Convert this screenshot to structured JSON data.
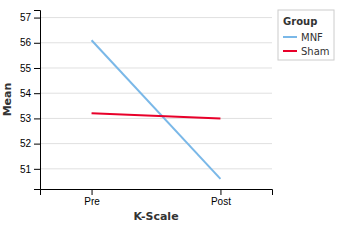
{
  "chart_data": {
    "type": "line",
    "categories": [
      "Pre",
      "Post"
    ],
    "series": [
      {
        "name": "MNF",
        "color": "#7ab8e8",
        "values": [
          56.1,
          50.6
        ]
      },
      {
        "name": "Sham",
        "color": "#e8002a",
        "values": [
          53.2,
          53.0
        ]
      }
    ],
    "xlabel": "K-Scale",
    "ylabel": "Mean",
    "ylim": [
      50.2,
      57.3
    ],
    "yticks": [
      51,
      52,
      53,
      54,
      55,
      56,
      57
    ],
    "grid": true,
    "legend": "upper right",
    "legend_title": "Group"
  }
}
